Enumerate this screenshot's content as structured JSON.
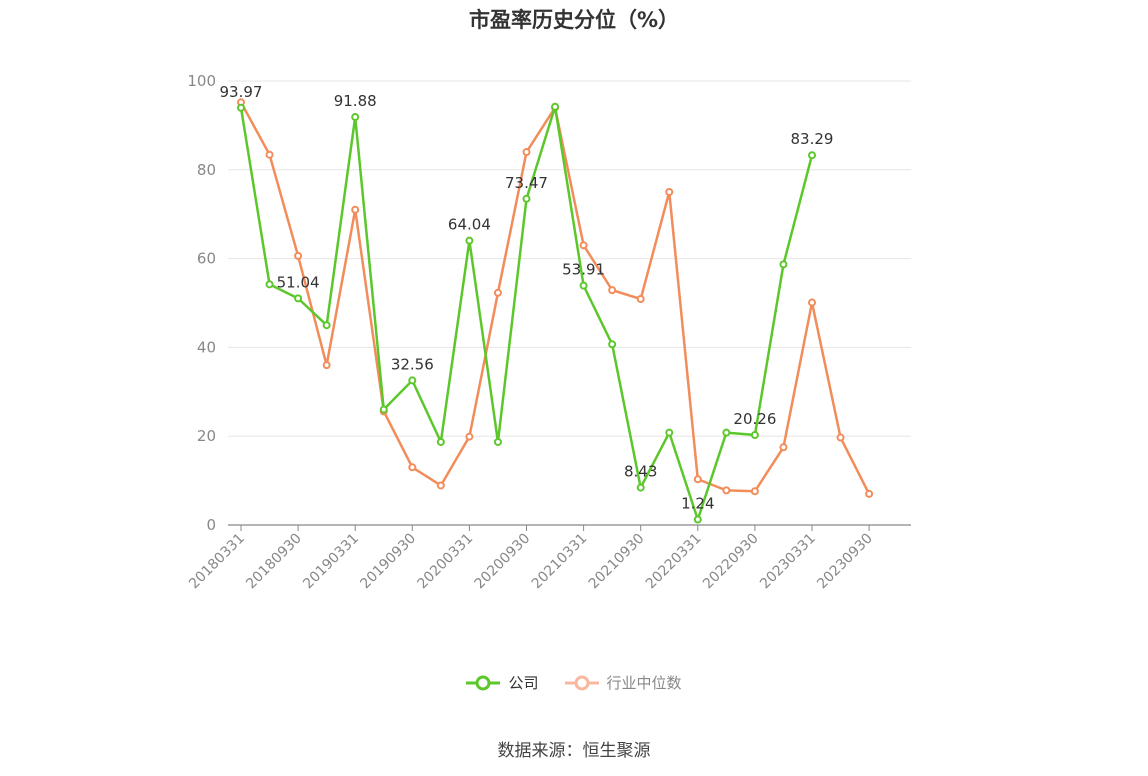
{
  "chart_data": {
    "type": "line",
    "title": "市盈率历史分位（%）",
    "xlabel": "",
    "ylabel": "",
    "ylim": [
      0,
      100
    ],
    "yticks": [
      "0",
      "20",
      "40",
      "60",
      "80",
      "100"
    ],
    "categories": [
      "20180331",
      "20180630",
      "20180930",
      "20181231",
      "20190331",
      "20190630",
      "20190930",
      "20191231",
      "20200331",
      "20200630",
      "20200930",
      "20201231",
      "20210331",
      "20210630",
      "20210930",
      "20211231",
      "20220331",
      "20220630",
      "20220930",
      "20221231",
      "20230331",
      "20230630",
      "20230930"
    ],
    "xtick_labels": [
      "20180331",
      "20180930",
      "20190331",
      "20190930",
      "20200331",
      "20200930",
      "20210331",
      "20210930",
      "20220331",
      "20220930",
      "20230331",
      "20230930"
    ],
    "grid": true,
    "legend_position": "bottom",
    "series": [
      {
        "name": "公司",
        "color": "#5cc72b",
        "values": [
          93.97,
          54.2,
          51.04,
          45.0,
          91.88,
          26.0,
          32.56,
          18.7,
          64.04,
          18.7,
          73.47,
          94.2,
          53.91,
          40.7,
          8.43,
          20.8,
          1.24,
          20.8,
          20.26,
          58.7,
          83.29,
          null,
          null
        ],
        "point_labels": [
          "93.97",
          "",
          "51.04",
          "",
          "91.88",
          "",
          "32.56",
          "",
          "64.04",
          "",
          "73.47",
          "",
          "53.91",
          "",
          "8.43",
          "",
          "1.24",
          "",
          "20.26",
          "",
          "83.29",
          "",
          ""
        ]
      },
      {
        "name": "行业中位数",
        "color": "#f28c5b",
        "values": [
          95.2,
          83.4,
          60.6,
          36.0,
          71.0,
          25.6,
          13.0,
          8.9,
          19.9,
          52.3,
          84.0,
          94.0,
          63.0,
          52.9,
          50.9,
          75.0,
          10.3,
          7.8,
          7.6,
          17.5,
          50.1,
          19.7,
          7.0
        ]
      }
    ]
  },
  "legend": {
    "items": [
      {
        "label": "公司"
      },
      {
        "label": "行业中位数"
      }
    ]
  },
  "source_text": "数据来源：恒生聚源"
}
